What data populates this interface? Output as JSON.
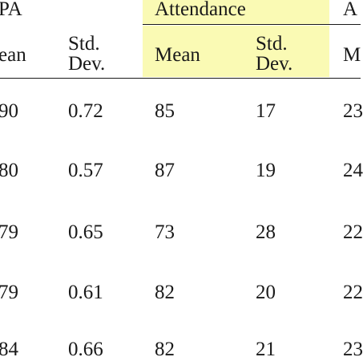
{
  "headers": {
    "group_left": "PA",
    "group_mid": "Attendance",
    "group_right": "A",
    "sub_left_mean": "ean",
    "sub_left_sd_1": "Std.",
    "sub_left_sd_2": "Dev.",
    "sub_mid_mean": "Mean",
    "sub_mid_sd_1": "Std.",
    "sub_mid_sd_2": "Dev.",
    "sub_right_mean": "M"
  },
  "rows": [
    {
      "gpa_mean": "90",
      "gpa_sd": "0.72",
      "att_mean": "85",
      "att_sd": "17",
      "age_mean": "23"
    },
    {
      "gpa_mean": "80",
      "gpa_sd": "0.57",
      "att_mean": "87",
      "att_sd": "19",
      "age_mean": "24"
    },
    {
      "gpa_mean": "79",
      "gpa_sd": "0.65",
      "att_mean": "73",
      "att_sd": "28",
      "age_mean": "22"
    },
    {
      "gpa_mean": "79",
      "gpa_sd": "0.61",
      "att_mean": "82",
      "att_sd": "20",
      "age_mean": "22"
    },
    {
      "gpa_mean": "84",
      "gpa_sd": "0.66",
      "att_mean": "82",
      "att_sd": "21",
      "age_mean": "23"
    }
  ],
  "colors": {
    "highlight": "#fafab4",
    "text": "#1a1a1a"
  }
}
